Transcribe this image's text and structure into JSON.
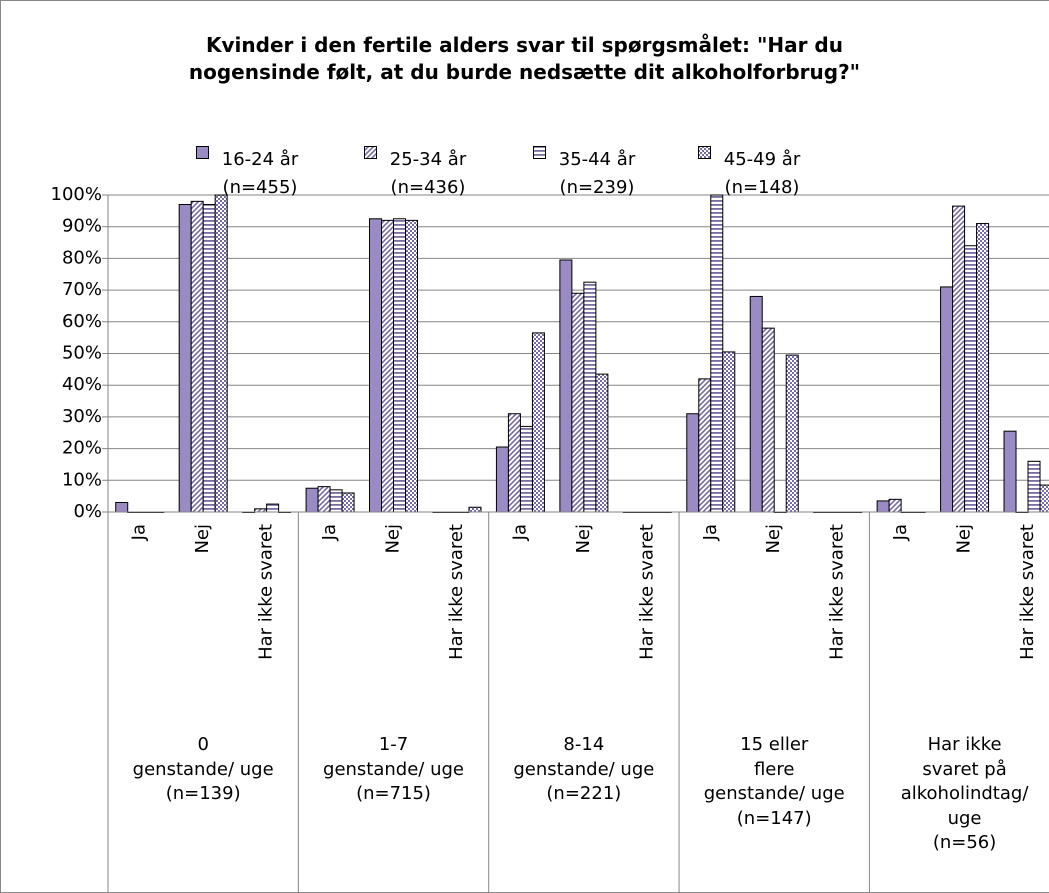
{
  "chart_data": {
    "type": "bar",
    "title": [
      "Kvinder i den fertile alders svar til spørgsmålet: \"Har du",
      "nogensinde følt, at du burde nedsætte dit alkoholforbrug?\""
    ],
    "categories": [
      "Ja",
      "Nej",
      "Har ikke svaret",
      "Ja",
      "Nej",
      "Har ikke svaret",
      "Ja",
      "Nej",
      "Har ikke svaret",
      "Ja",
      "Nej",
      "Har ikke svaret",
      "Ja",
      "Nej",
      "Har ikke svaret"
    ],
    "groups": [
      {
        "label": [
          "0",
          "genstande/ uge",
          "(n=139)"
        ],
        "span": 3
      },
      {
        "label": [
          "1-7",
          "genstande/ uge",
          "(n=715)"
        ],
        "span": 3
      },
      {
        "label": [
          "8-14",
          "genstande/ uge",
          "(n=221)"
        ],
        "span": 3
      },
      {
        "label": [
          "15 eller",
          "flere",
          "genstande/ uge",
          "(n=147)"
        ],
        "span": 3
      },
      {
        "label": [
          "Har ikke",
          "svaret på",
          "alkoholindtag/",
          "uge",
          "(n=56)"
        ],
        "span": 3
      }
    ],
    "series": [
      {
        "name": "16-24 år (n=455)",
        "color": "#9b8bc4",
        "pattern": "solid",
        "values": [
          3,
          97,
          0,
          7.5,
          92.5,
          0,
          20.5,
          79.5,
          0,
          31,
          68,
          0,
          3.5,
          71,
          25.5
        ]
      },
      {
        "name": "25-34 år (n=436)",
        "color": "#7a6aa8",
        "pattern": "diagonal",
        "values": [
          0,
          98,
          1,
          8,
          92,
          0,
          31,
          69,
          0,
          42,
          58,
          0,
          4,
          96.5,
          0
        ]
      },
      {
        "name": "35-44 år (n=239)",
        "color": "#7a6aa8",
        "pattern": "horizontal",
        "values": [
          0,
          97,
          2.5,
          7,
          92.5,
          0,
          27,
          72.5,
          0,
          100,
          0,
          0,
          0,
          84,
          16
        ]
      },
      {
        "name": "45-49 år (n=148)",
        "color": "#7a6aa8",
        "pattern": "checker",
        "values": [
          0,
          100,
          0,
          6,
          92,
          1.5,
          56.5,
          43.5,
          0,
          50.5,
          49.5,
          0,
          0,
          91,
          8.5
        ]
      }
    ],
    "ylim": [
      0,
      100
    ],
    "yticks": [
      {
        "value": 0,
        "label": "0%"
      },
      {
        "value": 10,
        "label": "10%"
      },
      {
        "value": 20,
        "label": "20%"
      },
      {
        "value": 30,
        "label": "30%"
      },
      {
        "value": 40,
        "label": "40%"
      },
      {
        "value": 50,
        "label": "50%"
      },
      {
        "value": 60,
        "label": "60%"
      },
      {
        "value": 70,
        "label": "70%"
      },
      {
        "value": 80,
        "label": "80%"
      },
      {
        "value": 90,
        "label": "90%"
      },
      {
        "value": 100,
        "label": "100%"
      }
    ],
    "grid": true,
    "legend": "top"
  }
}
